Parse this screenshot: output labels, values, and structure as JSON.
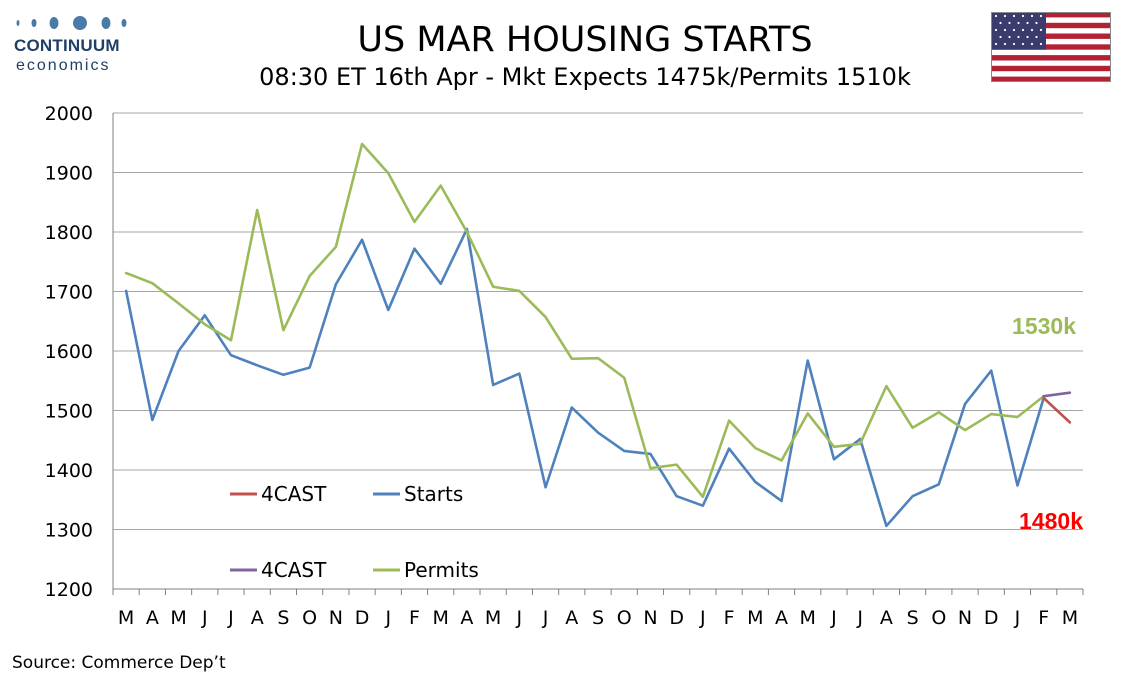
{
  "header": {
    "title": "US MAR HOUSING STARTS",
    "subtitle": "08:30 ET 16th Apr - Mkt Expects 1475k/Permits 1510k"
  },
  "logo": {
    "name": "CONTINUUM",
    "sub": "economics",
    "color": "#1f3f66"
  },
  "footer": {
    "source": "Source: Commerce Dep’t"
  },
  "chart_data": {
    "type": "line",
    "categories": [
      "M",
      "A",
      "M",
      "J",
      "J",
      "A",
      "S",
      "O",
      "N",
      "D",
      "J",
      "F",
      "M",
      "A",
      "M",
      "J",
      "J",
      "A",
      "S",
      "O",
      "N",
      "D",
      "J",
      "F",
      "M",
      "A",
      "M",
      "J",
      "J",
      "A",
      "S",
      "O",
      "N",
      "D",
      "J",
      "F",
      "M"
    ],
    "ylim": [
      1200,
      2000
    ],
    "yticks": [
      1200,
      1300,
      1400,
      1500,
      1600,
      1700,
      1800,
      1900,
      2000
    ],
    "grid": true,
    "legend": [
      {
        "label": "4CAST",
        "color": "#c0504d"
      },
      {
        "label": "Starts",
        "color": "#4f81bd"
      },
      {
        "label": "4CAST",
        "color": "#8064a2"
      },
      {
        "label": "Permits",
        "color": "#9bbb59"
      }
    ],
    "series": [
      {
        "name": "Starts",
        "color": "#4f81bd",
        "values": [
          1701,
          1484,
          1600,
          1660,
          1593,
          1576,
          1560,
          1572,
          1712,
          1787,
          1669,
          1772,
          1713,
          1805,
          1543,
          1562,
          1371,
          1505,
          1463,
          1432,
          1427,
          1356,
          1340,
          1436,
          1380,
          1348,
          1584,
          1418,
          1452,
          1306,
          1356,
          1376,
          1511,
          1567,
          1374,
          1521,
          null
        ]
      },
      {
        "name": "Permits",
        "color": "#9bbb59",
        "values": [
          1731,
          1714,
          1680,
          1645,
          1618,
          1837,
          1635,
          1726,
          1775,
          1948,
          1899,
          1817,
          1878,
          1800,
          1708,
          1701,
          1657,
          1587,
          1588,
          1555,
          1403,
          1409,
          1355,
          1483,
          1437,
          1416,
          1495,
          1439,
          1444,
          1541,
          1471,
          1497,
          1467,
          1494,
          1489,
          1524,
          null
        ]
      },
      {
        "name": "4CAST",
        "color": "#c0504d",
        "values": [
          null,
          null,
          null,
          null,
          null,
          null,
          null,
          null,
          null,
          null,
          null,
          null,
          null,
          null,
          null,
          null,
          null,
          null,
          null,
          null,
          null,
          null,
          null,
          null,
          null,
          null,
          null,
          null,
          null,
          null,
          null,
          null,
          null,
          null,
          null,
          1521,
          1480
        ]
      },
      {
        "name": "4CAST",
        "color": "#8064a2",
        "values": [
          null,
          null,
          null,
          null,
          null,
          null,
          null,
          null,
          null,
          null,
          null,
          null,
          null,
          null,
          null,
          null,
          null,
          null,
          null,
          null,
          null,
          null,
          null,
          null,
          null,
          null,
          null,
          null,
          null,
          null,
          null,
          null,
          null,
          null,
          null,
          1524,
          1530
        ]
      }
    ],
    "annotations": [
      {
        "text": "1530k",
        "color": "#9bbb59"
      },
      {
        "text": "1480k",
        "color": "#ff0000"
      }
    ]
  }
}
